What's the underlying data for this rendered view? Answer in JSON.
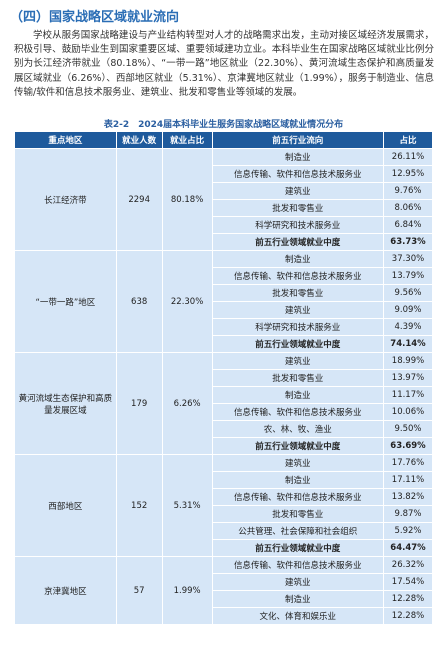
{
  "heading": "（四）国家战略区域就业流向",
  "paragraph": "学校从服务国家战略建设与产业结构转型对人才的战略需求出发，主动对接区域经济发展需求，积极引导、鼓励毕业生到国家重要区域、重要领域建功立业。本科毕业生在国家战略区域就业比例分别为长江经济带就业（80.18%）、“一带一路”地区就业（22.30%）、黄河流域生态保护和高质量发展区域就业（6.26%）、西部地区就业（5.31%）、京津冀地区就业（1.99%），服务于制造业、信息传输/软件和信息技术服务业、建筑业、批发和零售业等领域的发展。",
  "table": {
    "caption": "表2-2　2024届本科毕业生服务国家战略区域就业情况分布",
    "header": [
      "重点地区",
      "就业人数",
      "就业占比",
      "前五行业流向",
      "占比"
    ],
    "groups": [
      {
        "region": "长江经济带",
        "count": "2294",
        "ratio": "80.18%",
        "rows": [
          [
            "制造业",
            "26.11%"
          ],
          [
            "信息传输、软件和信息技术服务业",
            "12.95%"
          ],
          [
            "建筑业",
            "9.76%"
          ],
          [
            "批发和零售业",
            "8.06%"
          ],
          [
            "科学研究和技术服务业",
            "6.84%"
          ]
        ],
        "total": [
          "前五行业领域就业中度",
          "63.73%"
        ]
      },
      {
        "region": "“一带一路”地区",
        "count": "638",
        "ratio": "22.30%",
        "rows": [
          [
            "制造业",
            "37.30%"
          ],
          [
            "信息传输、软件和信息技术服务业",
            "13.79%"
          ],
          [
            "批发和零售业",
            "9.56%"
          ],
          [
            "建筑业",
            "9.09%"
          ],
          [
            "科学研究和技术服务业",
            "4.39%"
          ]
        ],
        "total": [
          "前五行业领域就业中度",
          "74.14%"
        ]
      },
      {
        "region": "黄河流域生态保护和高质量发展区域",
        "count": "179",
        "ratio": "6.26%",
        "rows": [
          [
            "建筑业",
            "18.99%"
          ],
          [
            "批发和零售业",
            "13.97%"
          ],
          [
            "制造业",
            "11.17%"
          ],
          [
            "信息传输、软件和信息技术服务业",
            "10.06%"
          ],
          [
            "农、林、牧、渔业",
            "9.50%"
          ]
        ],
        "total": [
          "前五行业领域就业中度",
          "63.69%"
        ]
      },
      {
        "region": "西部地区",
        "count": "152",
        "ratio": "5.31%",
        "rows": [
          [
            "建筑业",
            "17.76%"
          ],
          [
            "制造业",
            "17.11%"
          ],
          [
            "信息传输、软件和信息技术服务业",
            "13.82%"
          ],
          [
            "批发和零售业",
            "9.87%"
          ],
          [
            "公共管理、社会保障和社会组织",
            "5.92%"
          ]
        ],
        "total": [
          "前五行业领域就业中度",
          "64.47%"
        ]
      },
      {
        "region": "京津冀地区",
        "count": "57",
        "ratio": "1.99%",
        "rows": [
          [
            "信息传输、软件和信息技术服务业",
            "26.32%"
          ],
          [
            "建筑业",
            "17.54%"
          ],
          [
            "制造业",
            "12.28%"
          ],
          [
            "文化、体育和娱乐业",
            "12.28%"
          ]
        ]
      }
    ]
  }
}
